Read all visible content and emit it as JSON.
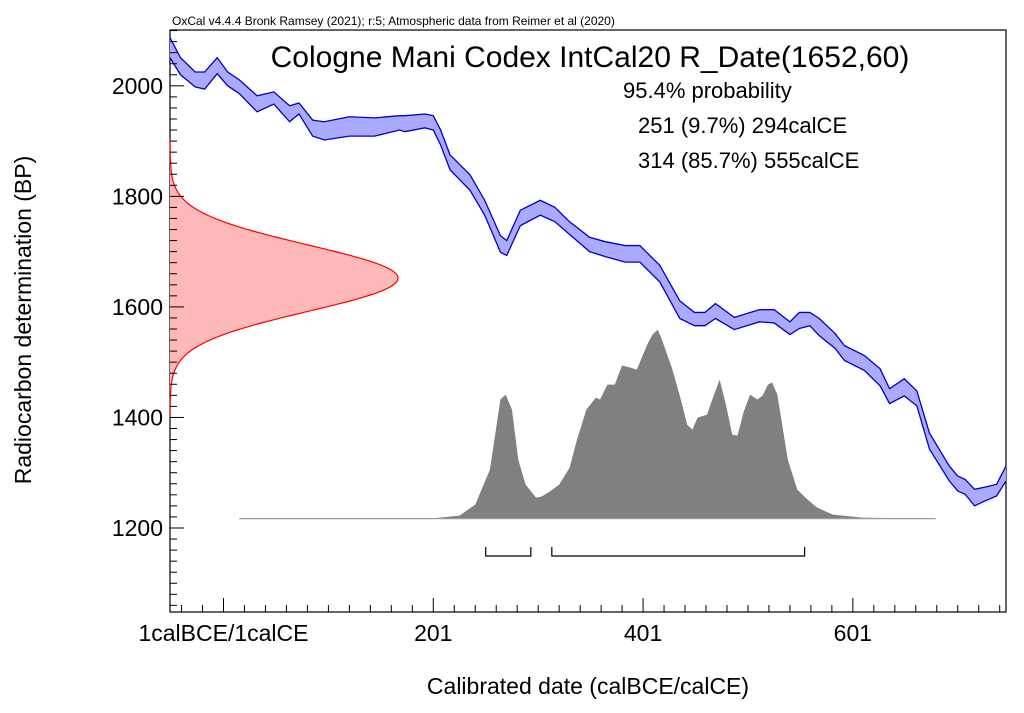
{
  "chart_data": {
    "type": "area",
    "credit": "OxCal v4.4.4 Bronk Ramsey (2021); r:5; Atmospheric data from Reimer et al (2020)",
    "title": "Cologne Mani Codex IntCal20 R_Date(1652,60)",
    "stats": {
      "heading": "95.4% probability",
      "ranges": [
        {
          "text": "251 (9.7%) 294calCE",
          "from": 251,
          "to": 294,
          "percent": 9.7
        },
        {
          "text": "314 (85.7%) 555calCE",
          "from": 314,
          "to": 555,
          "percent": 85.7
        }
      ]
    },
    "xlabel": "Calibrated date (calBCE/calCE)",
    "ylabel": "Radiocarbon determination (BP)",
    "xlim": [
      -50,
      747
    ],
    "ylim": [
      1048,
      2101
    ],
    "x_ticks": [
      {
        "value": 1,
        "label": "1calBCE/1calCE"
      },
      {
        "value": 201,
        "label": "201"
      },
      {
        "value": 401,
        "label": "401"
      },
      {
        "value": 601,
        "label": "601"
      }
    ],
    "y_ticks": [
      {
        "value": 2000,
        "label": "2000"
      },
      {
        "value": 1800,
        "label": "1800"
      },
      {
        "value": 1600,
        "label": "1600"
      },
      {
        "value": 1400,
        "label": "1400"
      },
      {
        "value": 1200,
        "label": "1200"
      }
    ],
    "radiocarbon_date": {
      "mean": 1652,
      "sigma": 60,
      "color": "#ff0000",
      "fill": "#ffb8b8"
    },
    "calibration_curve": {
      "name": "IntCal20",
      "color": "#0000cc",
      "fill": "#aaaaff",
      "points": [
        [
          -50,
          2087,
          2051
        ],
        [
          -40,
          2051,
          2020
        ],
        [
          -26,
          2025,
          1998
        ],
        [
          -17,
          2025,
          1994
        ],
        [
          -5,
          2051,
          2022
        ],
        [
          5,
          2025,
          2000
        ],
        [
          16,
          2011,
          1986
        ],
        [
          33,
          1982,
          1953
        ],
        [
          49,
          1989,
          1967
        ],
        [
          64,
          1964,
          1935
        ],
        [
          73,
          1969,
          1949
        ],
        [
          86,
          1938,
          1909
        ],
        [
          97,
          1935,
          1902
        ],
        [
          121,
          1944,
          1909
        ],
        [
          145,
          1942,
          1909
        ],
        [
          169,
          1946,
          1920
        ],
        [
          174,
          1946,
          1917
        ],
        [
          193,
          1949,
          1924
        ],
        [
          201,
          1946,
          1920
        ],
        [
          208,
          1920,
          1893
        ],
        [
          217,
          1875,
          1848
        ],
        [
          236,
          1839,
          1811
        ],
        [
          250,
          1793,
          1766
        ],
        [
          265,
          1729,
          1699
        ],
        [
          271,
          1720,
          1693
        ],
        [
          284,
          1775,
          1747
        ],
        [
          303,
          1793,
          1766
        ],
        [
          317,
          1780,
          1754
        ],
        [
          331,
          1754,
          1731
        ],
        [
          350,
          1726,
          1700
        ],
        [
          365,
          1718,
          1691
        ],
        [
          384,
          1711,
          1681
        ],
        [
          398,
          1711,
          1681
        ],
        [
          417,
          1675,
          1645
        ],
        [
          436,
          1611,
          1579
        ],
        [
          450,
          1590,
          1566
        ],
        [
          460,
          1590,
          1566
        ],
        [
          470,
          1606,
          1579
        ],
        [
          488,
          1581,
          1559
        ],
        [
          512,
          1595,
          1573
        ],
        [
          526,
          1595,
          1571
        ],
        [
          541,
          1573,
          1550
        ],
        [
          550,
          1590,
          1561
        ],
        [
          560,
          1590,
          1566
        ],
        [
          569,
          1579,
          1548
        ],
        [
          584,
          1552,
          1525
        ],
        [
          593,
          1530,
          1503
        ],
        [
          612,
          1512,
          1485
        ],
        [
          627,
          1488,
          1457
        ],
        [
          636,
          1452,
          1425
        ],
        [
          650,
          1470,
          1439
        ],
        [
          662,
          1448,
          1421
        ],
        [
          674,
          1372,
          1343
        ],
        [
          693,
          1312,
          1285
        ],
        [
          701,
          1294,
          1267
        ],
        [
          708,
          1288,
          1261
        ],
        [
          717,
          1270,
          1240
        ],
        [
          727,
          1274,
          1249
        ],
        [
          738,
          1279,
          1258
        ],
        [
          747,
          1312,
          1285
        ]
      ]
    },
    "posterior": {
      "color": "#808080",
      "baseline_bp": 1217,
      "from": 16,
      "to": 680,
      "points": [
        [
          16,
          0.0
        ],
        [
          200,
          0.0
        ],
        [
          207,
          0.005
        ],
        [
          226,
          0.016
        ],
        [
          241,
          0.074
        ],
        [
          255,
          0.259
        ],
        [
          265,
          0.63
        ],
        [
          270,
          0.656
        ],
        [
          276,
          0.577
        ],
        [
          282,
          0.312
        ],
        [
          289,
          0.18
        ],
        [
          299,
          0.111
        ],
        [
          304,
          0.116
        ],
        [
          312,
          0.143
        ],
        [
          321,
          0.18
        ],
        [
          331,
          0.27
        ],
        [
          338,
          0.418
        ],
        [
          347,
          0.577
        ],
        [
          356,
          0.64
        ],
        [
          360,
          0.63
        ],
        [
          367,
          0.709
        ],
        [
          374,
          0.709
        ],
        [
          381,
          0.81
        ],
        [
          389,
          0.799
        ],
        [
          395,
          0.788
        ],
        [
          405,
          0.921
        ],
        [
          410,
          0.974
        ],
        [
          415,
          1.0
        ],
        [
          419,
          0.947
        ],
        [
          429,
          0.788
        ],
        [
          437,
          0.63
        ],
        [
          443,
          0.497
        ],
        [
          448,
          0.471
        ],
        [
          453,
          0.534
        ],
        [
          462,
          0.55
        ],
        [
          467,
          0.63
        ],
        [
          474,
          0.735
        ],
        [
          480,
          0.603
        ],
        [
          486,
          0.444
        ],
        [
          491,
          0.439
        ],
        [
          497,
          0.566
        ],
        [
          503,
          0.656
        ],
        [
          510,
          0.63
        ],
        [
          515,
          0.651
        ],
        [
          520,
          0.709
        ],
        [
          524,
          0.72
        ],
        [
          529,
          0.656
        ],
        [
          539,
          0.312
        ],
        [
          548,
          0.153
        ],
        [
          558,
          0.1
        ],
        [
          567,
          0.058
        ],
        [
          582,
          0.021
        ],
        [
          610,
          0.005
        ],
        [
          680,
          0.0
        ]
      ]
    }
  }
}
